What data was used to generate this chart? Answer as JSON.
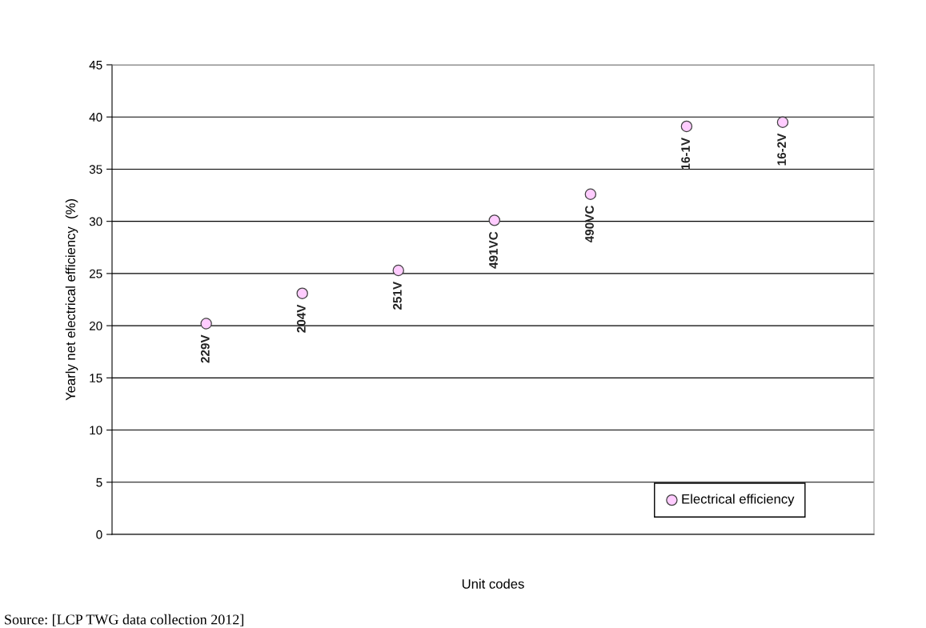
{
  "chart_data": {
    "type": "scatter",
    "xlabel": "Unit codes",
    "ylabel": "Yearly net electrical efficiency  (%)",
    "categories": [
      "229V",
      "204V",
      "251V",
      "491VC",
      "490VC",
      "16-1V",
      "16-2V"
    ],
    "series": [
      {
        "name": "Electrical efficiency",
        "color": "#ffccff",
        "values": [
          20.2,
          23.1,
          25.3,
          30.1,
          32.6,
          39.1,
          39.5
        ]
      }
    ],
    "ylim": [
      0,
      45
    ],
    "yticks": [
      0,
      5,
      10,
      15,
      20,
      25,
      30,
      35,
      40,
      45
    ],
    "grid": "y",
    "legend": "bottom right",
    "marker": "circle",
    "annotations": [
      "Source: [LCP TWG data collection 2012]"
    ]
  }
}
